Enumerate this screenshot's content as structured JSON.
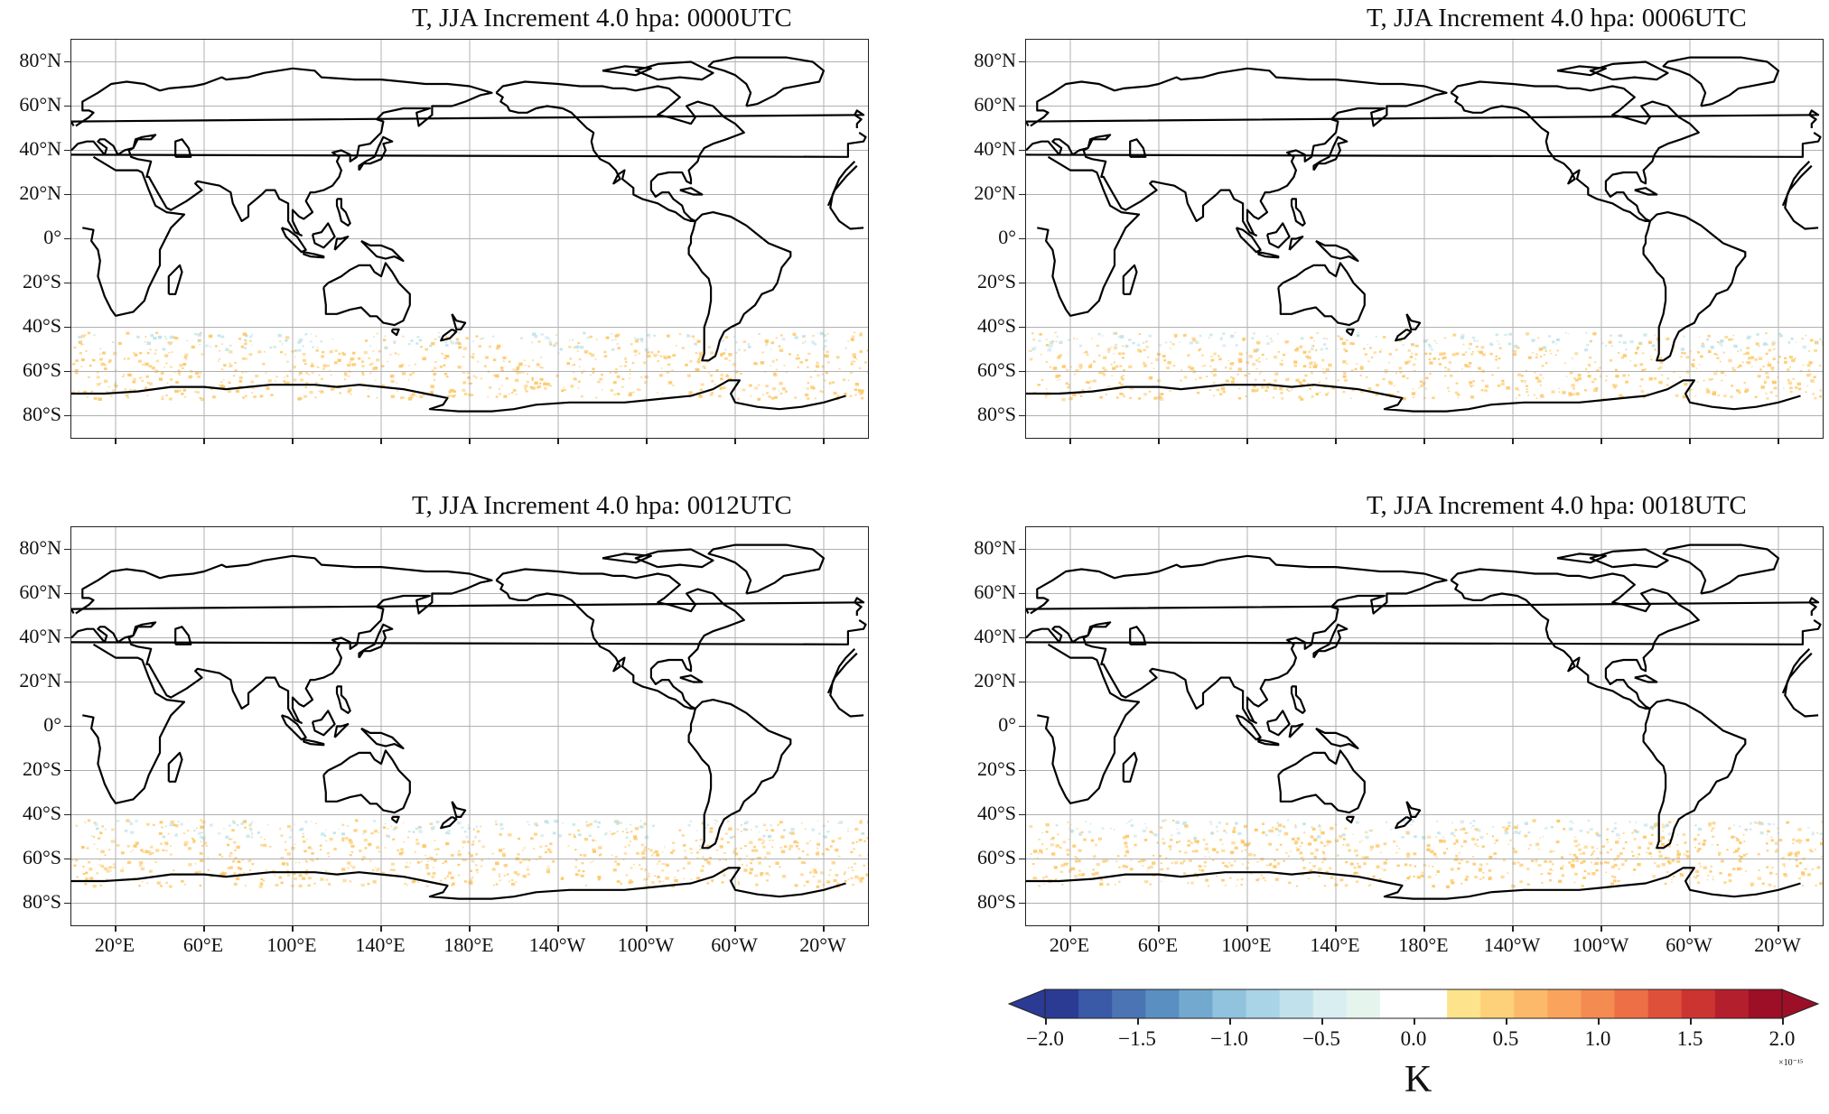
{
  "panels": [
    {
      "title": "T, JJA Increment 4.0 hpa: 0000UTC",
      "show_lon_labels": false
    },
    {
      "title": "T, JJA Increment 4.0 hpa: 0006UTC",
      "show_lon_labels": false
    },
    {
      "title": "T, JJA Increment 4.0 hpa: 0012UTC",
      "show_lon_labels": true
    },
    {
      "title": "T, JJA Increment 4.0 hpa: 0018UTC",
      "show_lon_labels": true
    }
  ],
  "lat_labels": [
    "80°N",
    "60°N",
    "40°N",
    "20°N",
    "0°",
    "20°S",
    "40°S",
    "60°S",
    "80°S"
  ],
  "lat_values": [
    80,
    60,
    40,
    20,
    0,
    -20,
    -40,
    -60,
    -80
  ],
  "lon_labels": [
    "20°E",
    "60°E",
    "100°E",
    "140°E",
    "180°E",
    "140°W",
    "100°W",
    "60°W",
    "20°W"
  ],
  "lon_values": [
    20,
    60,
    100,
    140,
    180,
    220,
    260,
    300,
    340
  ],
  "map_extent": {
    "lon_min": 0,
    "lon_max": 360,
    "lat_min": -90,
    "lat_max": 90,
    "central_longitude": 180
  },
  "colorbar": {
    "tick_labels": [
      "−2.0",
      "−1.5",
      "−1.0",
      "−0.5",
      "0.0",
      "0.5",
      "1.0",
      "1.5",
      "2.0"
    ],
    "tick_values": [
      -2.0,
      -1.5,
      -1.0,
      -0.5,
      0.0,
      0.5,
      1.0,
      1.5,
      2.0
    ],
    "unit": "K",
    "exponent_label": "×10⁻¹⁵",
    "colors": [
      "#2b3b94",
      "#3a5aa8",
      "#4a74b4",
      "#5a8fc2",
      "#74a9cf",
      "#91c2de",
      "#a9d3e6",
      "#c1e2ec",
      "#d8eef0",
      "#e6f4ee",
      "#ffffff",
      "#ffffff",
      "#fde48c",
      "#fdd07a",
      "#fcb96a",
      "#f9a35c",
      "#f48b51",
      "#ec6f46",
      "#df503b",
      "#cc3432",
      "#b41f2d",
      "#9c0f27"
    ],
    "extend": "both"
  },
  "field_colors": {
    "positive": "#fdc96a",
    "negative": "#bfe3ea",
    "coast": "#000000",
    "grid": "#b0b0b0"
  }
}
